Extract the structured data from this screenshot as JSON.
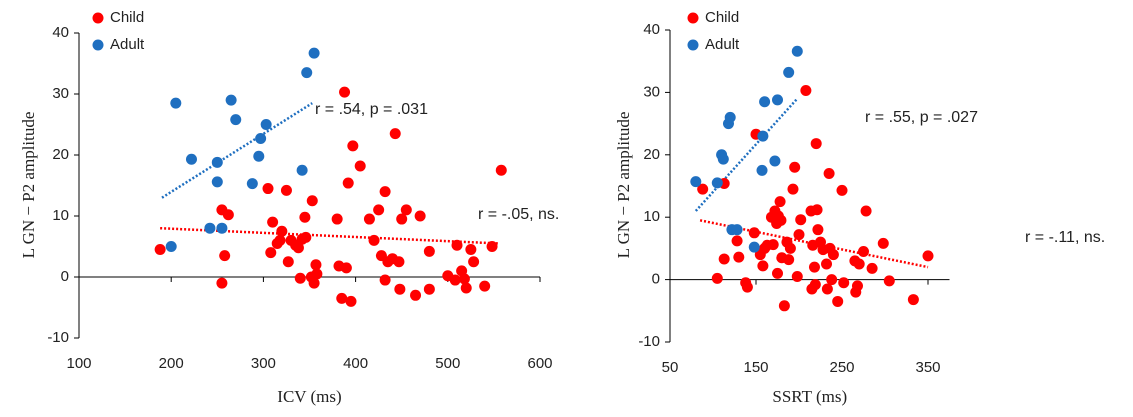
{
  "chart_data": [
    {
      "type": "scatter",
      "x_label": "ICV (ms)",
      "y_label": "L GN − P2  amplitude",
      "xlim": [
        100,
        600
      ],
      "ylim": [
        -10,
        40
      ],
      "xticks": [
        100,
        200,
        300,
        400,
        500,
        600
      ],
      "yticks": [
        -10,
        0,
        10,
        20,
        30,
        40
      ],
      "series": [
        {
          "name": "Child",
          "color": "#ff0000",
          "x": [
            188,
            255,
            255,
            258,
            262,
            305,
            308,
            310,
            315,
            318,
            320,
            325,
            327,
            330,
            335,
            338,
            340,
            342,
            345,
            346,
            352,
            353,
            355,
            357,
            358,
            380,
            382,
            385,
            388,
            390,
            392,
            395,
            397,
            405,
            415,
            420,
            425,
            428,
            432,
            432,
            435,
            440,
            443,
            447,
            448,
            450,
            455,
            465,
            470,
            480,
            480,
            500,
            508,
            510,
            515,
            518,
            520,
            525,
            528,
            540,
            548,
            558
          ],
          "values": [
            4.5,
            11,
            -1,
            3.5,
            10.2,
            14.5,
            4,
            9,
            5.5,
            6,
            7.5,
            14.2,
            2.5,
            6,
            5.2,
            4.8,
            -0.2,
            6.2,
            9.8,
            6.5,
            0,
            12.5,
            -1,
            2,
            0.5,
            9.5,
            1.8,
            -3.5,
            30.3,
            1.5,
            15.4,
            -4,
            21.5,
            18.2,
            9.5,
            6,
            11,
            3.5,
            14,
            -0.5,
            2.5,
            3,
            23.5,
            2.5,
            -2,
            9.5,
            11,
            -3,
            10,
            -2,
            4.2,
            0.2,
            -0.5,
            5.2,
            1,
            -0.3,
            -1.8,
            4.5,
            2.5,
            -1.5,
            5,
            17.5
          ]
        },
        {
          "name": "Adult",
          "color": "#1f6fc0",
          "x": [
            200,
            205,
            222,
            242,
            250,
            250,
            255,
            265,
            270,
            288,
            295,
            297,
            303,
            342,
            347,
            355
          ],
          "values": [
            5,
            28.5,
            19.3,
            8,
            15.6,
            18.8,
            8,
            29,
            25.8,
            15.3,
            19.8,
            22.7,
            25,
            17.5,
            33.5,
            36.7
          ]
        }
      ],
      "fit_lines": [
        {
          "color": "#1f6fc0",
          "x": [
            190,
            353
          ],
          "values": [
            13,
            28.5
          ]
        },
        {
          "color": "#ff0000",
          "x": [
            188,
            555
          ],
          "values": [
            8,
            5.5
          ]
        }
      ],
      "annotations": [
        "r = .54, p = .031",
        "r = -.05, ns."
      ]
    },
    {
      "type": "scatter",
      "x_label": "SSRT (ms)",
      "y_label": "L GN − P2  amplitude",
      "xlim": [
        50,
        375
      ],
      "ylim": [
        -10,
        40
      ],
      "xticks": [
        50,
        150,
        250,
        350
      ],
      "yticks": [
        -10,
        0,
        10,
        20,
        30,
        40
      ],
      "series": [
        {
          "name": "Child",
          "color": "#ff0000",
          "x": [
            88,
            105,
            113,
            113,
            128,
            130,
            138,
            140,
            148,
            150,
            155,
            158,
            160,
            163,
            168,
            170,
            172,
            174,
            175,
            176,
            178,
            179,
            180,
            183,
            186,
            188,
            190,
            193,
            195,
            198,
            200,
            202,
            208,
            214,
            215,
            216,
            218,
            219,
            220,
            221,
            222,
            225,
            228,
            232,
            233,
            235,
            236,
            238,
            240,
            245,
            250,
            252,
            265,
            266,
            268,
            270,
            275,
            278,
            285,
            298,
            305,
            333,
            350
          ],
          "values": [
            14.5,
            0.2,
            15.4,
            3.3,
            6.2,
            3.6,
            -0.5,
            -1.2,
            7.5,
            23.3,
            4,
            2.2,
            5,
            5.5,
            10,
            5.6,
            11,
            9,
            1,
            10.2,
            12.5,
            9.5,
            3.5,
            -4.2,
            6,
            3.2,
            5,
            14.5,
            18,
            0.5,
            7.2,
            9.6,
            30.3,
            11,
            -1.5,
            5.5,
            2,
            -0.8,
            21.8,
            11.2,
            8,
            6,
            4.8,
            2.5,
            -1.5,
            17,
            5,
            0,
            4,
            -3.5,
            14.3,
            -0.5,
            3,
            -2,
            -1,
            2.5,
            4.5,
            11,
            1.8,
            5.8,
            -0.2,
            -3.2,
            3.8
          ]
        },
        {
          "name": "Adult",
          "color": "#1f6fc0",
          "x": [
            80,
            105,
            110,
            112,
            118,
            120,
            122,
            128,
            148,
            157,
            158,
            160,
            172,
            175,
            188,
            198
          ],
          "values": [
            15.7,
            15.5,
            20,
            19.3,
            25,
            26,
            8,
            8,
            5.2,
            17.5,
            23,
            28.5,
            19,
            28.8,
            33.2,
            36.6
          ]
        }
      ],
      "fit_lines": [
        {
          "color": "#1f6fc0",
          "x": [
            80,
            198
          ],
          "values": [
            11,
            29
          ]
        },
        {
          "color": "#ff0000",
          "x": [
            85,
            350
          ],
          "values": [
            9.5,
            2
          ]
        }
      ],
      "annotations": [
        "r = .55, p = .027",
        "r = -.11, ns."
      ]
    }
  ]
}
